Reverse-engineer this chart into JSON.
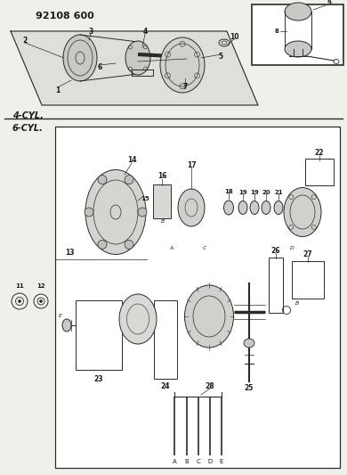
{
  "title": "92108 600",
  "bg_color": "#f0f0eb",
  "line_color": "#2a2a2a",
  "text_color": "#1a1a1a",
  "label_4cyl": "4-CYL.",
  "label_6cyl": "6-CYL.",
  "figsize": [
    3.9,
    5.33
  ],
  "dpi": 100
}
